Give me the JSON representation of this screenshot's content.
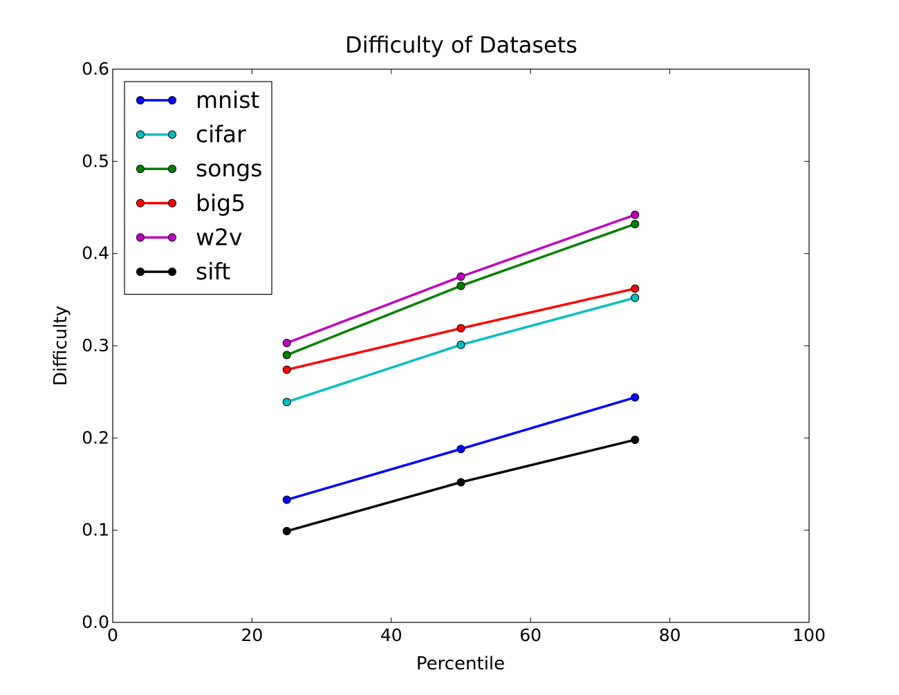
{
  "chart_data": {
    "type": "line",
    "title": "Difficulty of Datasets",
    "xlabel": "Percentile",
    "ylabel": "Difficulty",
    "xlim": [
      0,
      100
    ],
    "ylim": [
      0.0,
      0.6
    ],
    "xticks": [
      "0",
      "20",
      "40",
      "60",
      "80",
      "100"
    ],
    "yticks": [
      "0.0",
      "0.1",
      "0.2",
      "0.3",
      "0.4",
      "0.5",
      "0.6"
    ],
    "grid": false,
    "legend_position": "top-left",
    "x": [
      25,
      50,
      75
    ],
    "series": [
      {
        "name": "mnist",
        "color": "#0000ff",
        "values": [
          0.133,
          0.188,
          0.244
        ]
      },
      {
        "name": "cifar",
        "color": "#00bfbf",
        "values": [
          0.239,
          0.301,
          0.352
        ]
      },
      {
        "name": "songs",
        "color": "#008000",
        "values": [
          0.29,
          0.365,
          0.432
        ]
      },
      {
        "name": "big5",
        "color": "#ff0000",
        "values": [
          0.274,
          0.319,
          0.362
        ]
      },
      {
        "name": "w2v",
        "color": "#bf00bf",
        "values": [
          0.303,
          0.375,
          0.442
        ]
      },
      {
        "name": "sift",
        "color": "#000000",
        "values": [
          0.099,
          0.152,
          0.198
        ]
      }
    ]
  }
}
